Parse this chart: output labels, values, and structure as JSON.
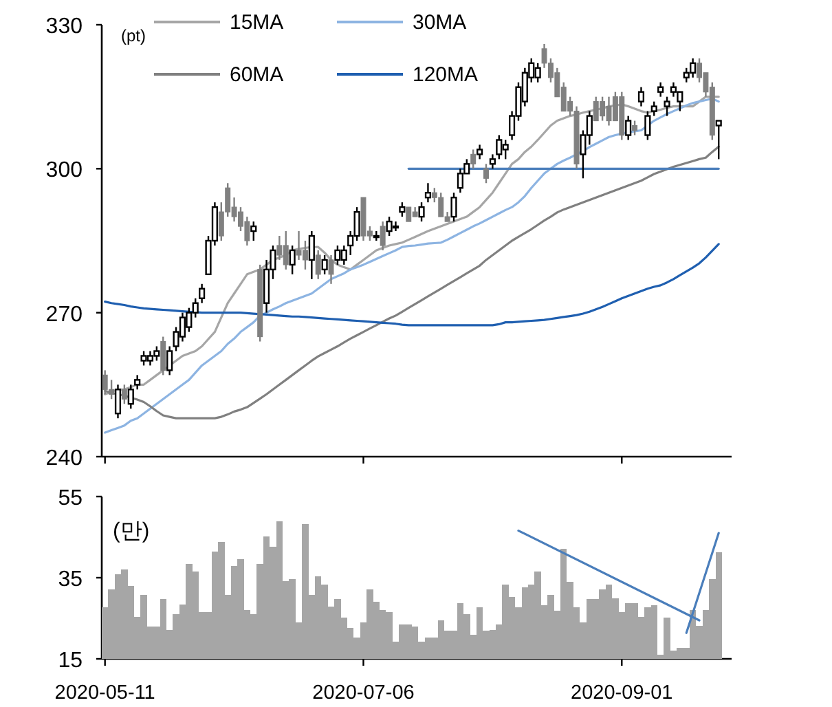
{
  "chart_data": [
    {
      "type": "candlestick",
      "ylabel": "(pt)",
      "colors": [
        "#808080",
        "#808080",
        "#ffffff",
        "#808080",
        "#ffffff",
        "#ffffff",
        "#ffffff",
        "#ffffff",
        "#ffffff",
        "#808080",
        "#ffffff",
        "#ffffff",
        "#ffffff",
        "#ffffff",
        "#ffffff",
        "#ffffff",
        "#ffffff",
        "#ffffff",
        "#808080",
        "#808080",
        "#808080",
        "#808080",
        "#808080",
        "#ffffff",
        "#808080",
        "#ffffff",
        "#ffffff",
        "#808080",
        "#808080",
        "#ffffff",
        "#808080",
        "#808080",
        "#ffffff",
        "#808080",
        "#ffffff",
        "#808080",
        "#ffffff",
        "#ffffff",
        "#ffffff",
        "#ffffff",
        "#808080",
        "#808080",
        "#ffffff",
        "#808080",
        "#ffffff",
        "#ffffff",
        "#ffffff",
        "#808080",
        "#808080",
        "#ffffff",
        "#ffffff",
        "#808080",
        "#808080",
        "#808080",
        "#ffffff",
        "#ffffff",
        "#ffffff",
        "#808080",
        "#ffffff",
        "#808080",
        "#ffffff",
        "#ffffff",
        "#ffffff",
        "#ffffff",
        "#ffffff",
        "#ffffff",
        "#ffffff",
        "#ffffff",
        "#808080",
        "#808080",
        "#808080",
        "#808080",
        "#808080",
        "#808080",
        "#ffffff",
        "#ffffff",
        "#808080",
        "#808080",
        "#808080",
        "#808080",
        "#808080",
        "#ffffff",
        "#808080",
        "#ffffff",
        "#ffffff",
        "#ffffff",
        "#ffffff",
        "#ffffff",
        "#ffffff",
        "#ffffff",
        "#ffffff",
        "#ffffff",
        "#808080",
        "#808080",
        "#808080",
        "#ffffff"
      ],
      "legend": "top left",
      "tick_labels": "y",
      "categories": [
        "2020-05-11",
        null,
        null,
        null,
        null,
        null,
        null,
        null,
        null,
        null,
        null,
        null,
        null,
        null,
        null,
        null,
        null,
        null,
        null,
        null,
        null,
        null,
        null,
        null,
        null,
        null,
        null,
        null,
        null,
        null,
        null,
        null,
        null,
        null,
        null,
        null,
        null,
        null,
        null,
        null,
        "2020-07-06",
        null,
        null,
        null,
        null,
        null,
        null,
        null,
        null,
        null,
        null,
        null,
        null,
        null,
        null,
        null,
        null,
        null,
        null,
        null,
        null,
        null,
        null,
        null,
        null,
        null,
        null,
        null,
        null,
        null,
        null,
        null,
        null,
        null,
        null,
        null,
        null,
        null,
        null,
        null,
        "2020-09-01",
        null,
        null,
        null,
        null,
        null,
        null,
        null,
        null,
        null,
        null,
        null,
        null,
        null,
        null,
        null
      ],
      "ylim": [
        240,
        330
      ],
      "yticks": [
        240,
        270,
        300,
        330
      ],
      "ohlc": [
        [
          257,
          258,
          253,
          254
        ],
        [
          254,
          256,
          252,
          253
        ],
        [
          249,
          255,
          248,
          254
        ],
        [
          254,
          255,
          251,
          252
        ],
        [
          251,
          255,
          250,
          254
        ],
        [
          255,
          257,
          254,
          256
        ],
        [
          260,
          262,
          259,
          261
        ],
        [
          260,
          262,
          259,
          261
        ],
        [
          261,
          263,
          260,
          262
        ],
        [
          264,
          265,
          257,
          258
        ],
        [
          258,
          263,
          257,
          262
        ],
        [
          263,
          267,
          262,
          266
        ],
        [
          265,
          270,
          264,
          269
        ],
        [
          267,
          271,
          266,
          270
        ],
        [
          270,
          273,
          269,
          272
        ],
        [
          273,
          276,
          272,
          275
        ],
        [
          278,
          286,
          278,
          285
        ],
        [
          285,
          293,
          284,
          292
        ],
        [
          291,
          293,
          285,
          286
        ],
        [
          296,
          297,
          290,
          291
        ],
        [
          292,
          294,
          289,
          290
        ],
        [
          291,
          292,
          287,
          288
        ],
        [
          289,
          290,
          284,
          285
        ],
        [
          287,
          289,
          285,
          288
        ],
        [
          279,
          280,
          264,
          265
        ],
        [
          272,
          281,
          270,
          279
        ],
        [
          279,
          284,
          277,
          283
        ],
        [
          284,
          286,
          281,
          282
        ],
        [
          284,
          287,
          279,
          280
        ],
        [
          280,
          284,
          278,
          283
        ],
        [
          283,
          287,
          281,
          282
        ],
        [
          283,
          285,
          279,
          281
        ],
        [
          281,
          287,
          277,
          286
        ],
        [
          282,
          283,
          277,
          278
        ],
        [
          279,
          282,
          278,
          281
        ],
        [
          281,
          282,
          276,
          278
        ],
        [
          281,
          284,
          280,
          283
        ],
        [
          281,
          284,
          280,
          283
        ],
        [
          284,
          287,
          282,
          286
        ],
        [
          286,
          292,
          285,
          291
        ],
        [
          294,
          294,
          285,
          286
        ],
        [
          287,
          288,
          285,
          286
        ],
        [
          286,
          287,
          285,
          286
        ],
        [
          288,
          289,
          283,
          284
        ],
        [
          287,
          290,
          286,
          289
        ],
        [
          288,
          289,
          287,
          288
        ],
        [
          291,
          293,
          290,
          292
        ],
        [
          292,
          292,
          289,
          289
        ],
        [
          291,
          292,
          290,
          290
        ],
        [
          290,
          293,
          289,
          292
        ],
        [
          294,
          297,
          293,
          295
        ],
        [
          295,
          296,
          293,
          294
        ],
        [
          294,
          295,
          290,
          290
        ],
        [
          290,
          291,
          289,
          289
        ],
        [
          290,
          295,
          289,
          294
        ],
        [
          296,
          300,
          295,
          299
        ],
        [
          299,
          302,
          299,
          301
        ],
        [
          303,
          304,
          300,
          301
        ],
        [
          303,
          305,
          302,
          304
        ],
        [
          300,
          301,
          297,
          298
        ],
        [
          301,
          303,
          300,
          302
        ],
        [
          303,
          307,
          302,
          306
        ],
        [
          304,
          306,
          302,
          305
        ],
        [
          307,
          312,
          306,
          311
        ],
        [
          311,
          318,
          310,
          317
        ],
        [
          314,
          321,
          313,
          320
        ],
        [
          319,
          323,
          318,
          322
        ],
        [
          319,
          322,
          318,
          321
        ],
        [
          325,
          326,
          321,
          322
        ],
        [
          322,
          323,
          318,
          319
        ],
        [
          320,
          321,
          315,
          315
        ],
        [
          317,
          318,
          312,
          312
        ],
        [
          314,
          315,
          311,
          312
        ],
        [
          312,
          313,
          300,
          301
        ],
        [
          303,
          308,
          298,
          307
        ],
        [
          307,
          312,
          305,
          311
        ],
        [
          314,
          315,
          310,
          310
        ],
        [
          314,
          315,
          310,
          311
        ],
        [
          313,
          315,
          309,
          310
        ],
        [
          315,
          316,
          310,
          310
        ],
        [
          315,
          316,
          306,
          307
        ],
        [
          307,
          311,
          306,
          310
        ],
        [
          309,
          310,
          307,
          308
        ],
        [
          314,
          317,
          313,
          316
        ],
        [
          307,
          312,
          306,
          311
        ],
        [
          312,
          314,
          311,
          313
        ],
        [
          316,
          318,
          315,
          317
        ],
        [
          313,
          315,
          311,
          314
        ],
        [
          316,
          318,
          315,
          317
        ],
        [
          314,
          316,
          312,
          316
        ],
        [
          319,
          321,
          318,
          320
        ],
        [
          320,
          323,
          319,
          322
        ],
        [
          322,
          323,
          318,
          319
        ],
        [
          320,
          320,
          315,
          316
        ],
        [
          317,
          318,
          306,
          307
        ],
        [
          309,
          310,
          302,
          310
        ]
      ],
      "series": [
        {
          "type": "line",
          "name": "15MA",
          "color": "#a6a6a6",
          "values": [
            253,
            253.5,
            254,
            254,
            254.5,
            255,
            255,
            256,
            257,
            258,
            259,
            260,
            261,
            261.5,
            262,
            263,
            264.5,
            266,
            269,
            272,
            274,
            276,
            278,
            278.5,
            279,
            280,
            281,
            281.5,
            282,
            283,
            283.3,
            283.5,
            283.7,
            283.7,
            282.5,
            281,
            280,
            279.5,
            279,
            280,
            281,
            282,
            283,
            283.5,
            284,
            284.3,
            284.6,
            285.2,
            285.8,
            286.4,
            287,
            287.5,
            288,
            288.5,
            289,
            289.5,
            290,
            291,
            292,
            293.5,
            295,
            297,
            299,
            301,
            302,
            303.5,
            304.6,
            306,
            307.5,
            309,
            310,
            310.5,
            311,
            311.3,
            311.7,
            312,
            312.3,
            312.6,
            313,
            313.2,
            313.4,
            313,
            312.5,
            312,
            311.7,
            312,
            312.3,
            312.7,
            313,
            313,
            313,
            313,
            314,
            315,
            315,
            315
          ]
        },
        {
          "type": "line",
          "name": "30MA",
          "color": "#8db4e2",
          "values": [
            245,
            245.5,
            246,
            246.5,
            247.5,
            248,
            249,
            250,
            251,
            252,
            253,
            254,
            255,
            256,
            257.5,
            259,
            260,
            261,
            262,
            263.5,
            264.6,
            266,
            267,
            268,
            269.4,
            270,
            270.7,
            271.3,
            272,
            272.5,
            273,
            273.5,
            274,
            275,
            276,
            277,
            277.6,
            278.2,
            279,
            279.5,
            280,
            280.6,
            281.2,
            281.8,
            282.4,
            283,
            283.7,
            283.9,
            284,
            284.2,
            284.4,
            284.5,
            284.6,
            285.2,
            285.9,
            286.6,
            287.3,
            288,
            288.6,
            289.3,
            290,
            290.7,
            291.4,
            292,
            293,
            294.3,
            296,
            297.5,
            299,
            300,
            301,
            301.7,
            302.3,
            303,
            303.7,
            304.5,
            305.2,
            305.9,
            306.6,
            307,
            307.3,
            307.6,
            307.8,
            308,
            309,
            310,
            310.7,
            311.4,
            312,
            312.6,
            313.2,
            313.7,
            314,
            314.3,
            314.6,
            314
          ]
        },
        {
          "type": "line",
          "name": "60MA",
          "color": "#808080",
          "values": [
            253.7,
            253.3,
            253,
            252.7,
            252.3,
            251.9,
            251.4,
            250.5,
            249.5,
            248.6,
            248.3,
            248,
            248,
            248,
            248,
            248,
            248,
            248,
            248.3,
            248.8,
            249.4,
            249.8,
            250.3,
            251.2,
            252.1,
            253,
            254,
            255,
            256,
            257,
            258,
            259,
            260,
            260.9,
            261.6,
            262.3,
            263,
            263.8,
            264.6,
            265.3,
            266,
            266.7,
            267.4,
            268.1,
            268.8,
            269.4,
            270.2,
            271,
            271.8,
            272.6,
            273.4,
            274.2,
            275,
            275.8,
            276.6,
            277.4,
            278.2,
            279,
            279.8,
            281,
            282,
            283,
            284,
            285,
            285.8,
            286.6,
            287.4,
            288.3,
            289.2,
            290,
            290.9,
            291.5,
            292,
            292.5,
            293,
            293.5,
            294,
            294.5,
            295,
            295.5,
            296,
            296.5,
            297,
            297.5,
            298.2,
            298.9,
            299.4,
            299.9,
            300.4,
            300.8,
            301.2,
            301.6,
            302,
            302.3,
            303.5,
            304.6
          ]
        },
        {
          "type": "line",
          "name": "120MA",
          "color": "#1f5fb0",
          "values": [
            272.3,
            272,
            271.8,
            271.6,
            271.3,
            271.1,
            270.9,
            270.8,
            270.7,
            270.6,
            270.5,
            270.4,
            270.3,
            270.2,
            270.1,
            270,
            270,
            270,
            270,
            270,
            270,
            270,
            269.9,
            269.8,
            269.7,
            269.6,
            269.5,
            269.4,
            269.3,
            269.2,
            269.2,
            269.1,
            269,
            268.9,
            268.8,
            268.7,
            268.6,
            268.5,
            268.4,
            268.3,
            268.2,
            268.1,
            268,
            267.9,
            267.8,
            267.7,
            267.5,
            267.4,
            267.4,
            267.4,
            267.4,
            267.4,
            267.4,
            267.4,
            267.4,
            267.4,
            267.4,
            267.4,
            267.4,
            267.4,
            267.4,
            267.6,
            268,
            268,
            268.1,
            268.2,
            268.3,
            268.4,
            268.5,
            268.7,
            268.9,
            269.1,
            269.3,
            269.5,
            269.8,
            270.2,
            270.7,
            271.2,
            271.8,
            272.4,
            273,
            273.5,
            274,
            274.5,
            275,
            275.4,
            275.7,
            276.3,
            277,
            277.8,
            278.6,
            279.4,
            280.3,
            281.5,
            282.9,
            284.3
          ]
        },
        {
          "type": "line",
          "color": "#4a7ebb",
          "values": [
            null,
            null,
            null,
            null,
            null,
            null,
            null,
            null,
            null,
            null,
            null,
            null,
            null,
            null,
            null,
            null,
            null,
            null,
            null,
            null,
            null,
            null,
            null,
            null,
            null,
            null,
            null,
            null,
            null,
            null,
            null,
            null,
            null,
            null,
            null,
            null,
            null,
            null,
            null,
            null,
            null,
            null,
            null,
            null,
            null,
            null,
            null,
            300,
            null,
            null,
            null,
            null,
            null,
            null,
            null,
            null,
            null,
            null,
            null,
            null,
            null,
            null,
            null,
            null,
            null,
            null,
            null,
            null,
            null,
            null,
            null,
            null,
            null,
            null,
            null,
            null,
            null,
            null,
            null,
            null,
            null,
            null,
            null,
            null,
            null,
            null,
            null,
            null,
            null,
            null,
            null,
            null,
            null,
            null,
            null,
            300
          ]
        }
      ]
    },
    {
      "type": "bar",
      "ylabel": "(만)",
      "categories": [
        "2020-05-11",
        null,
        null,
        null,
        null,
        null,
        null,
        null,
        null,
        null,
        null,
        null,
        null,
        null,
        null,
        null,
        null,
        null,
        null,
        null,
        null,
        null,
        null,
        null,
        null,
        null,
        null,
        null,
        null,
        null,
        null,
        null,
        null,
        null,
        null,
        null,
        null,
        null,
        null,
        null,
        "2020-07-06",
        null,
        null,
        null,
        null,
        null,
        null,
        null,
        null,
        null,
        null,
        null,
        null,
        null,
        null,
        null,
        null,
        null,
        null,
        null,
        null,
        null,
        null,
        null,
        null,
        null,
        null,
        null,
        null,
        null,
        null,
        null,
        null,
        null,
        null,
        null,
        null,
        null,
        null,
        null,
        "2020-09-01",
        null,
        null,
        null,
        null,
        null,
        null,
        null,
        null,
        null,
        null,
        null,
        null,
        null,
        null,
        null
      ],
      "ylim": [
        15,
        55
      ],
      "yticks": [
        15,
        35,
        55
      ],
      "series": [
        {
          "type": "bar",
          "color": "#a6a6a6",
          "values": [
            27.7,
            32.2,
            35.8,
            37,
            33,
            25.4,
            30.8,
            22.9,
            22.9,
            29.7,
            22.2,
            26,
            28.4,
            38.4,
            36.5,
            26.5,
            26.5,
            41.4,
            43.8,
            30.8,
            37.8,
            39.5,
            27.1,
            26,
            38.4,
            45.2,
            42.7,
            48.9,
            34.1,
            34.7,
            24,
            48.2,
            30.8,
            35.3,
            33.3,
            27.9,
            29.7,
            25.2,
            22.6,
            20.3,
            24,
            32.2,
            29,
            27.1,
            26.5,
            19.2,
            23.5,
            23.5,
            22.9,
            19.2,
            20.3,
            20.3,
            24.5,
            22,
            22,
            28.8,
            26,
            20.9,
            27.7,
            22,
            22.2,
            23.4,
            33.3,
            30.2,
            27.7,
            32.7,
            33.3,
            36.5,
            28.2,
            30.8,
            26.8,
            42.1,
            33.9,
            27.7,
            24,
            29.7,
            29.7,
            32.2,
            33.3,
            29.9,
            26.5,
            28.8,
            28.8,
            25.4,
            27.7,
            28.2,
            16,
            25.2,
            17,
            17.7,
            17.7,
            27.1,
            23.1,
            27.1,
            34.7,
            41.3
          ]
        },
        {
          "type": "line",
          "color": "#4a7ebb",
          "values": [
            null,
            null,
            null,
            null,
            null,
            null,
            null,
            null,
            null,
            null,
            null,
            null,
            null,
            null,
            null,
            null,
            null,
            null,
            null,
            null,
            null,
            null,
            null,
            null,
            null,
            null,
            null,
            null,
            null,
            null,
            null,
            null,
            null,
            null,
            null,
            null,
            null,
            null,
            null,
            null,
            null,
            null,
            null,
            null,
            null,
            null,
            null,
            null,
            null,
            null,
            null,
            null,
            null,
            null,
            null,
            null,
            null,
            null,
            null,
            null,
            null,
            null,
            null,
            null,
            46.6,
            null,
            null,
            null,
            null,
            null,
            null,
            null,
            null,
            null,
            null,
            null,
            null,
            null,
            null,
            null,
            null,
            null,
            null,
            null,
            null,
            null,
            null,
            null,
            null,
            null,
            null,
            null,
            24.5,
            null,
            null,
            null
          ]
        },
        {
          "type": "line",
          "color": "#4a7ebb",
          "values": [
            null,
            null,
            null,
            null,
            null,
            null,
            null,
            null,
            null,
            null,
            null,
            null,
            null,
            null,
            null,
            null,
            null,
            null,
            null,
            null,
            null,
            null,
            null,
            null,
            null,
            null,
            null,
            null,
            null,
            null,
            null,
            null,
            null,
            null,
            null,
            null,
            null,
            null,
            null,
            null,
            null,
            null,
            null,
            null,
            null,
            null,
            null,
            null,
            null,
            null,
            null,
            null,
            null,
            null,
            null,
            null,
            null,
            null,
            null,
            null,
            null,
            null,
            null,
            null,
            null,
            null,
            null,
            null,
            null,
            null,
            null,
            null,
            null,
            null,
            null,
            null,
            null,
            null,
            null,
            null,
            null,
            null,
            null,
            null,
            null,
            null,
            null,
            null,
            null,
            null,
            21.4,
            null,
            null,
            null,
            null,
            46
          ]
        }
      ]
    }
  ]
}
